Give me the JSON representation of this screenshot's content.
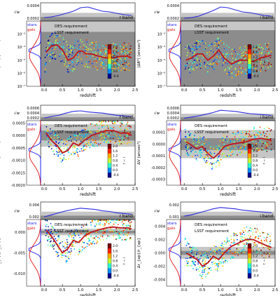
{
  "colors": {
    "stars": "#1a1aff",
    "gals": "#e01010",
    "median": "#c0141c",
    "weight": "#2a2ae0",
    "band_dark": "#8c8c8c",
    "band_light": "#c6c6c6",
    "axis": "#000000"
  },
  "colorbar": {
    "label": "r − i",
    "ticks": [
      "2.0",
      "1.6",
      "1.2",
      "0.8",
      "0.4",
      "0.0",
      "-0.4"
    ],
    "colors": [
      "#7f0000",
      "#ff2200",
      "#ffaa00",
      "#c8ff30",
      "#30ffd0",
      "#0090ff",
      "#00008f"
    ]
  },
  "chart_data": [
    {
      "id": "r-psf-size",
      "band": "r band",
      "type": "scatter",
      "xlabel": "redshift",
      "ylabel": "⟨ΔR²⟩ (arcsec²)",
      "top_ylabel": "√w",
      "top_ticks": [
        "0.0004",
        "0.0002"
      ],
      "log_y": true,
      "ylim": [
        1e-07,
        0.01
      ],
      "yticks": [
        "10⁻³",
        "10⁻⁴",
        "10⁻⁵",
        "10⁻⁶",
        "10⁻⁷"
      ],
      "xticks": [
        "0.0",
        "0.5",
        "1.0",
        "1.5",
        "2.0",
        "2.5"
      ],
      "xlim": [
        -0.1,
        2.5
      ],
      "legend": [
        "stars",
        "gals"
      ],
      "requirements": [
        {
          "label": "DES requirement",
          "value": 0.0015
        },
        {
          "label": "LSST requirement",
          "value": 0.0004
        }
      ],
      "median_curve": {
        "x": [
          0.05,
          0.2,
          0.35,
          0.5,
          0.65,
          0.8,
          0.95,
          1.05,
          1.15,
          1.3,
          1.5,
          1.7,
          1.9,
          2.1,
          2.3,
          2.4
        ],
        "y": [
          4e-05,
          0.00012,
          0.00015,
          6e-05,
          1e-05,
          1.5e-05,
          5e-05,
          5e-05,
          3e-05,
          3e-05,
          2e-05,
          1.5e-05,
          1.5e-05,
          2e-05,
          2e-05,
          1.5e-05
        ]
      },
      "weight_curve": {
        "x": [
          0.0,
          0.2,
          0.4,
          0.6,
          0.8,
          1.0,
          1.2,
          1.4,
          1.6,
          1.8,
          2.0,
          2.2,
          2.4
        ],
        "y": [
          0.15,
          0.2,
          0.3,
          0.45,
          0.6,
          0.85,
          0.9,
          0.75,
          0.6,
          0.55,
          0.45,
          0.35,
          0.3
        ]
      }
    },
    {
      "id": "i-psf-size",
      "band": "i band",
      "type": "scatter",
      "xlabel": "redshift",
      "ylabel": "⟨ΔR²⟩ (arcsec²)",
      "top_ylabel": "√w",
      "top_ticks": [
        "0.0004",
        "0.0002"
      ],
      "log_y": true,
      "ylim": [
        1e-07,
        0.01
      ],
      "yticks": [
        "10⁻³",
        "10⁻⁴",
        "10⁻⁵",
        "10⁻⁶",
        "10⁻⁷"
      ],
      "xticks": [
        "0.0",
        "0.5",
        "1.0",
        "1.5",
        "2.0",
        "2.5"
      ],
      "xlim": [
        -0.1,
        2.5
      ],
      "legend": [
        "stars",
        "gals"
      ],
      "requirements": [
        {
          "label": "DES requirement",
          "value": 0.002
        },
        {
          "label": "LSST requirement",
          "value": 0.0009
        }
      ],
      "median_curve": {
        "x": [
          0.05,
          0.2,
          0.35,
          0.5,
          0.65,
          0.8,
          0.95,
          1.1,
          1.3,
          1.5,
          1.7,
          1.9,
          2.1,
          2.3,
          2.4
        ],
        "y": [
          1e-05,
          1.5e-05,
          3e-05,
          3e-05,
          1e-05,
          2e-05,
          6e-05,
          1.5e-05,
          5e-06,
          1e-05,
          1e-05,
          8e-06,
          1.5e-05,
          2e-05,
          2.5e-05
        ]
      },
      "weight_curve": {
        "x": [
          0.0,
          0.2,
          0.4,
          0.6,
          0.8,
          1.0,
          1.2,
          1.4,
          1.6,
          1.8,
          2.0,
          2.2,
          2.4
        ],
        "y": [
          0.1,
          0.15,
          0.25,
          0.45,
          0.65,
          0.9,
          0.85,
          0.7,
          0.55,
          0.5,
          0.4,
          0.3,
          0.25
        ]
      }
    },
    {
      "id": "r-dv",
      "band": "r band",
      "type": "scatter",
      "xlabel": "redshift",
      "ylabel": "ΔV (arcsec²)",
      "top_ylabel": "√w",
      "top_ticks": [
        "0.0006",
        "0.0004",
        "0.0002"
      ],
      "log_y": false,
      "ylim": [
        -0.002,
        0.0006
      ],
      "yticks": [
        "0.0005",
        "0.0000",
        "-0.0005",
        "-0.0010",
        "-0.0015",
        "-0.0020"
      ],
      "yvals": [
        0.0005,
        0.0,
        -0.0005,
        -0.001,
        -0.0015,
        -0.002
      ],
      "xticks": [
        "0.0",
        "0.5",
        "1.0",
        "1.5",
        "2.0",
        "2.5"
      ],
      "xlim": [
        -0.1,
        2.5
      ],
      "legend": [
        "stars",
        "gals"
      ],
      "requirements": [
        {
          "label": "DES requirement",
          "value": 0.00045
        },
        {
          "label": "LSST requirement",
          "value": 0.0002
        }
      ],
      "median_curve": {
        "x": [
          0.05,
          0.2,
          0.35,
          0.5,
          0.65,
          0.8,
          0.95,
          1.1,
          1.3,
          1.5,
          1.7,
          1.9,
          2.1,
          2.3,
          2.4
        ],
        "y": [
          0.0001,
          -0.0002,
          -0.0004,
          -0.0007,
          -0.0006,
          -0.0003,
          -0.0004,
          -0.0002,
          0.0,
          0.0001,
          0.0002,
          0.0002,
          0.0001,
          0.0001,
          0.0
        ]
      },
      "weight_curve": {
        "x": [
          0.0,
          0.2,
          0.4,
          0.6,
          0.8,
          1.0,
          1.2,
          1.4,
          1.6,
          1.8,
          2.0,
          2.2,
          2.4
        ],
        "y": [
          0.1,
          0.25,
          0.35,
          0.55,
          0.7,
          0.75,
          0.65,
          0.6,
          0.55,
          0.45,
          0.35,
          0.3,
          0.25
        ]
      }
    },
    {
      "id": "i-dv",
      "band": "i band",
      "type": "scatter",
      "xlabel": "redshift",
      "ylabel": "ΔV (arcsec²)",
      "top_ylabel": "√w",
      "top_ticks": [
        "0.0006",
        "0.0004",
        "0.0002"
      ],
      "log_y": false,
      "ylim": [
        -0.00035,
        0.0002
      ],
      "yticks": [
        "0.0001",
        "0.0000",
        "-0.0001",
        "-0.0002",
        "-0.0003"
      ],
      "yvals": [
        0.0001,
        0.0,
        -0.0001,
        -0.0002,
        -0.0003
      ],
      "xticks": [
        "0.0",
        "0.5",
        "1.0",
        "1.5",
        "2.0",
        "2.5"
      ],
      "xlim": [
        -0.1,
        2.5
      ],
      "legend": [
        "stars",
        "gals"
      ],
      "requirements": [
        {
          "label": "DES requirement",
          "value": 0.00012
        },
        {
          "label": "LSST requirement",
          "value": 5e-05
        }
      ],
      "median_curve": {
        "x": [
          0.05,
          0.2,
          0.35,
          0.5,
          0.65,
          0.8,
          0.95,
          1.1,
          1.3,
          1.5,
          1.7,
          1.9,
          2.1,
          2.3,
          2.4
        ],
        "y": [
          2e-05,
          -1e-05,
          -4e-05,
          -2e-05,
          -8e-05,
          -0.00012,
          -8e-05,
          -2e-05,
          0.0,
          1e-05,
          2e-05,
          4e-05,
          5e-05,
          4e-05,
          3e-05
        ]
      },
      "weight_curve": {
        "x": [
          0.0,
          0.2,
          0.4,
          0.6,
          0.8,
          1.0,
          1.2,
          1.4,
          1.6,
          1.8,
          2.0,
          2.2,
          2.4
        ],
        "y": [
          0.1,
          0.2,
          0.3,
          0.45,
          0.6,
          0.8,
          0.75,
          0.7,
          0.6,
          0.5,
          0.45,
          0.4,
          0.35
        ]
      }
    },
    {
      "id": "r-dtm",
      "band": "r band",
      "type": "scatter",
      "xlabel": "redshift",
      "ylabel": "Δr_{ap}/r_{ap}",
      "top_ylabel": "√w",
      "top_ticks": [
        "0.004",
        "0.002"
      ],
      "log_y": false,
      "ylim": [
        -0.013,
        0.003
      ],
      "yticks": [
        "0.000",
        "-0.005",
        "-0.010"
      ],
      "yvals": [
        0.0,
        -0.005,
        -0.01
      ],
      "xticks": [
        "0.0",
        "0.5",
        "1.0",
        "1.5",
        "2.0",
        "2.5"
      ],
      "xlim": [
        -0.1,
        2.5
      ],
      "legend": [
        "stars",
        "gals"
      ],
      "requirements": [
        {
          "label": "DES requirement",
          "value": 0.0008
        },
        {
          "label": "LSST requirement",
          "value": 0.0003
        }
      ],
      "median_curve": {
        "x": [
          0.05,
          0.2,
          0.35,
          0.5,
          0.65,
          0.8,
          0.95,
          1.1,
          1.3,
          1.5,
          1.7,
          1.9,
          2.1,
          2.3,
          2.4
        ],
        "y": [
          0.0005,
          -0.001,
          -0.003,
          -0.005,
          -0.004,
          -0.002,
          -0.0025,
          -0.001,
          0.0,
          0.0005,
          0.001,
          0.0012,
          0.001,
          0.001,
          0.0008
        ]
      },
      "weight_curve": {
        "x": [
          0.0,
          0.2,
          0.4,
          0.6,
          0.8,
          1.0,
          1.2,
          1.4,
          1.6,
          1.8,
          2.0,
          2.2,
          2.4
        ],
        "y": [
          0.1,
          0.25,
          0.4,
          0.55,
          0.65,
          0.75,
          0.7,
          0.65,
          0.55,
          0.5,
          0.4,
          0.35,
          0.3
        ]
      }
    },
    {
      "id": "i-dtm",
      "band": "i band",
      "type": "scatter",
      "xlabel": "redshift",
      "ylabel": "Δr_{ap}/r_{ap}",
      "top_ylabel": "√w",
      "top_ticks": [
        "0.002",
        "0.001"
      ],
      "log_y": false,
      "ylim": [
        -0.005,
        0.005
      ],
      "yticks": [
        "0.004",
        "0.002",
        "0.000",
        "-0.002",
        "-0.004"
      ],
      "yvals": [
        0.004,
        0.002,
        0.0,
        -0.002,
        -0.004
      ],
      "xticks": [
        "0.0",
        "0.5",
        "1.0",
        "1.5",
        "2.0",
        "2.5"
      ],
      "xlim": [
        -0.1,
        2.5
      ],
      "legend": [
        "stars",
        "gals"
      ],
      "requirements": [
        {
          "label": "DES requirement",
          "value": 0.0009
        },
        {
          "label": "LSST requirement",
          "value": 0.0003
        }
      ],
      "median_curve": {
        "x": [
          0.05,
          0.2,
          0.35,
          0.5,
          0.65,
          0.8,
          0.95,
          1.1,
          1.3,
          1.5,
          1.7,
          1.9,
          2.1,
          2.3,
          2.4
        ],
        "y": [
          0.0,
          -0.0005,
          -0.001,
          -0.002,
          -0.0015,
          -0.0005,
          -0.001,
          0.0,
          0.001,
          0.0015,
          0.002,
          0.002,
          0.0015,
          0.001,
          0.0008
        ]
      },
      "weight_curve": {
        "x": [
          0.0,
          0.2,
          0.4,
          0.6,
          0.8,
          1.0,
          1.2,
          1.4,
          1.6,
          1.8,
          2.0,
          2.2,
          2.4
        ],
        "y": [
          0.15,
          0.25,
          0.4,
          0.55,
          0.7,
          0.8,
          0.75,
          0.7,
          0.6,
          0.55,
          0.5,
          0.45,
          0.4
        ]
      }
    }
  ]
}
